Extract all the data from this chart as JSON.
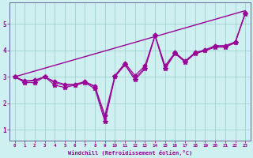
{
  "xlabel": "Windchill (Refroidissement éolien,°C)",
  "background_color": "#cff0f0",
  "line_color": "#990099",
  "grid_color": "#99cccc",
  "spine_color": "#666699",
  "x_ticks": [
    0,
    1,
    2,
    3,
    4,
    5,
    6,
    7,
    8,
    9,
    10,
    11,
    12,
    13,
    14,
    15,
    16,
    17,
    18,
    19,
    20,
    21,
    22,
    23
  ],
  "y_ticks": [
    1,
    2,
    3,
    4,
    5
  ],
  "xlim": [
    -0.5,
    23.5
  ],
  "ylim": [
    0.6,
    5.8
  ],
  "trend_line": {
    "x": [
      0,
      23
    ],
    "y": [
      3.0,
      5.5
    ]
  },
  "series": [
    {
      "x": [
        0,
        1,
        2,
        3,
        4,
        5,
        6,
        7,
        8,
        9,
        10,
        11,
        12,
        13,
        14,
        15,
        16,
        17,
        18,
        19,
        20,
        21,
        22,
        23
      ],
      "y": [
        3.0,
        2.78,
        2.78,
        3.0,
        2.68,
        2.6,
        2.68,
        2.78,
        2.55,
        1.3,
        3.0,
        3.45,
        2.88,
        3.3,
        4.55,
        3.3,
        3.88,
        3.55,
        3.88,
        3.98,
        4.12,
        4.12,
        4.28,
        5.38
      ],
      "marker": "*",
      "markersize": 4.0
    },
    {
      "x": [
        0,
        1,
        2,
        3,
        4,
        5,
        6,
        7,
        8,
        9,
        10,
        11,
        12,
        13,
        14,
        15,
        16,
        17,
        18,
        19,
        20,
        21,
        22,
        23
      ],
      "y": [
        3.0,
        2.85,
        2.88,
        3.0,
        2.82,
        2.72,
        2.72,
        2.82,
        2.65,
        1.55,
        3.05,
        3.52,
        3.05,
        3.42,
        4.58,
        3.42,
        3.92,
        3.6,
        3.92,
        4.02,
        4.18,
        4.18,
        4.32,
        5.42
      ],
      "marker": "D",
      "markersize": 2.5
    },
    {
      "x": [
        0,
        1,
        2,
        3,
        4,
        5,
        6,
        7,
        8,
        9,
        10,
        11,
        12,
        13,
        14,
        15,
        16,
        17,
        18,
        19,
        20,
        21,
        22,
        23
      ],
      "y": [
        3.0,
        2.82,
        2.85,
        3.0,
        2.78,
        2.68,
        2.68,
        2.8,
        2.62,
        1.42,
        3.02,
        3.48,
        2.95,
        3.36,
        4.56,
        3.36,
        3.9,
        3.57,
        3.9,
        4.0,
        4.15,
        4.15,
        4.3,
        5.4
      ],
      "marker": "+",
      "markersize": 3.5
    }
  ]
}
